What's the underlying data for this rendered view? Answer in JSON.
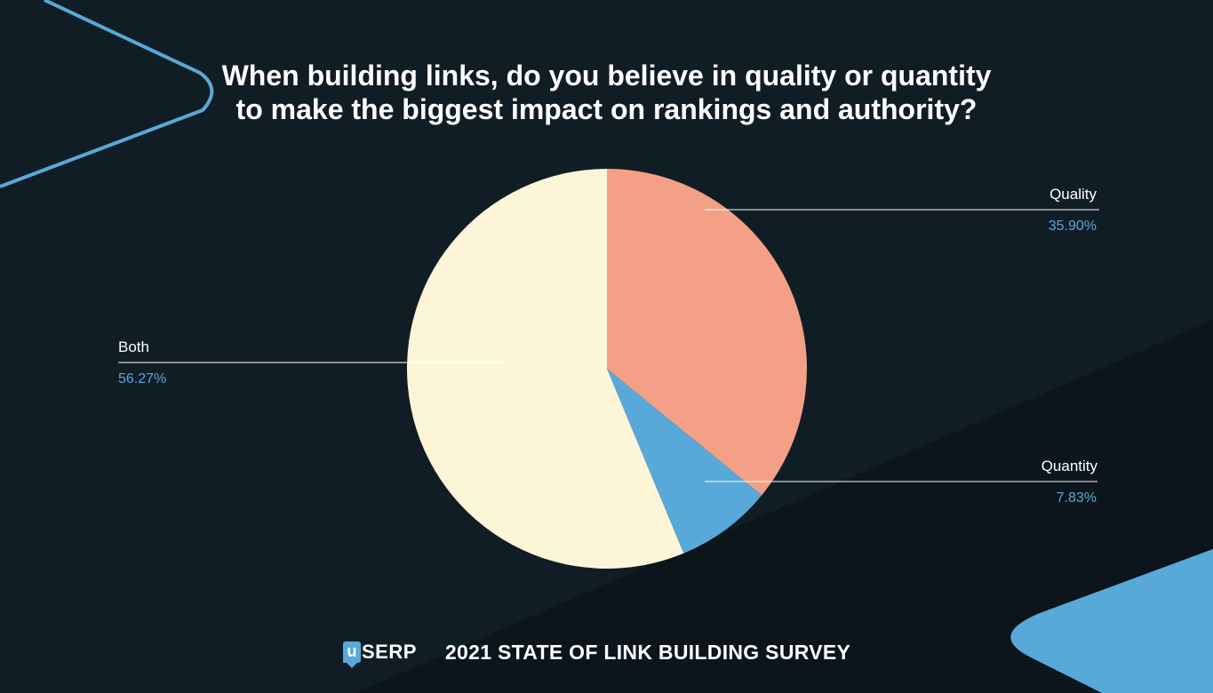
{
  "header": {
    "title_line1": "When building links, do you believe in quality or quantity",
    "title_line2": "to make the biggest impact on rankings and authority?"
  },
  "chart_data": {
    "type": "pie",
    "title": "When building links, do you believe in quality or quantity to make the biggest impact on rankings and authority?",
    "categories": [
      "Quality",
      "Quantity",
      "Both"
    ],
    "values": [
      35.9,
      7.83,
      56.27
    ],
    "value_labels": [
      "35.90%",
      "7.83%",
      "56.27%"
    ],
    "colors": [
      "#f3a086",
      "#58a9d9",
      "#fdf5d8"
    ],
    "legend": "none"
  },
  "footer": {
    "logo_badge": "u",
    "logo_text": "SERP",
    "survey_title": "2021 STATE OF LINK BUILDING SURVEY"
  },
  "colors": {
    "background": "#111d25",
    "background_dark": "#0b151b",
    "accent": "#58a9d9"
  }
}
